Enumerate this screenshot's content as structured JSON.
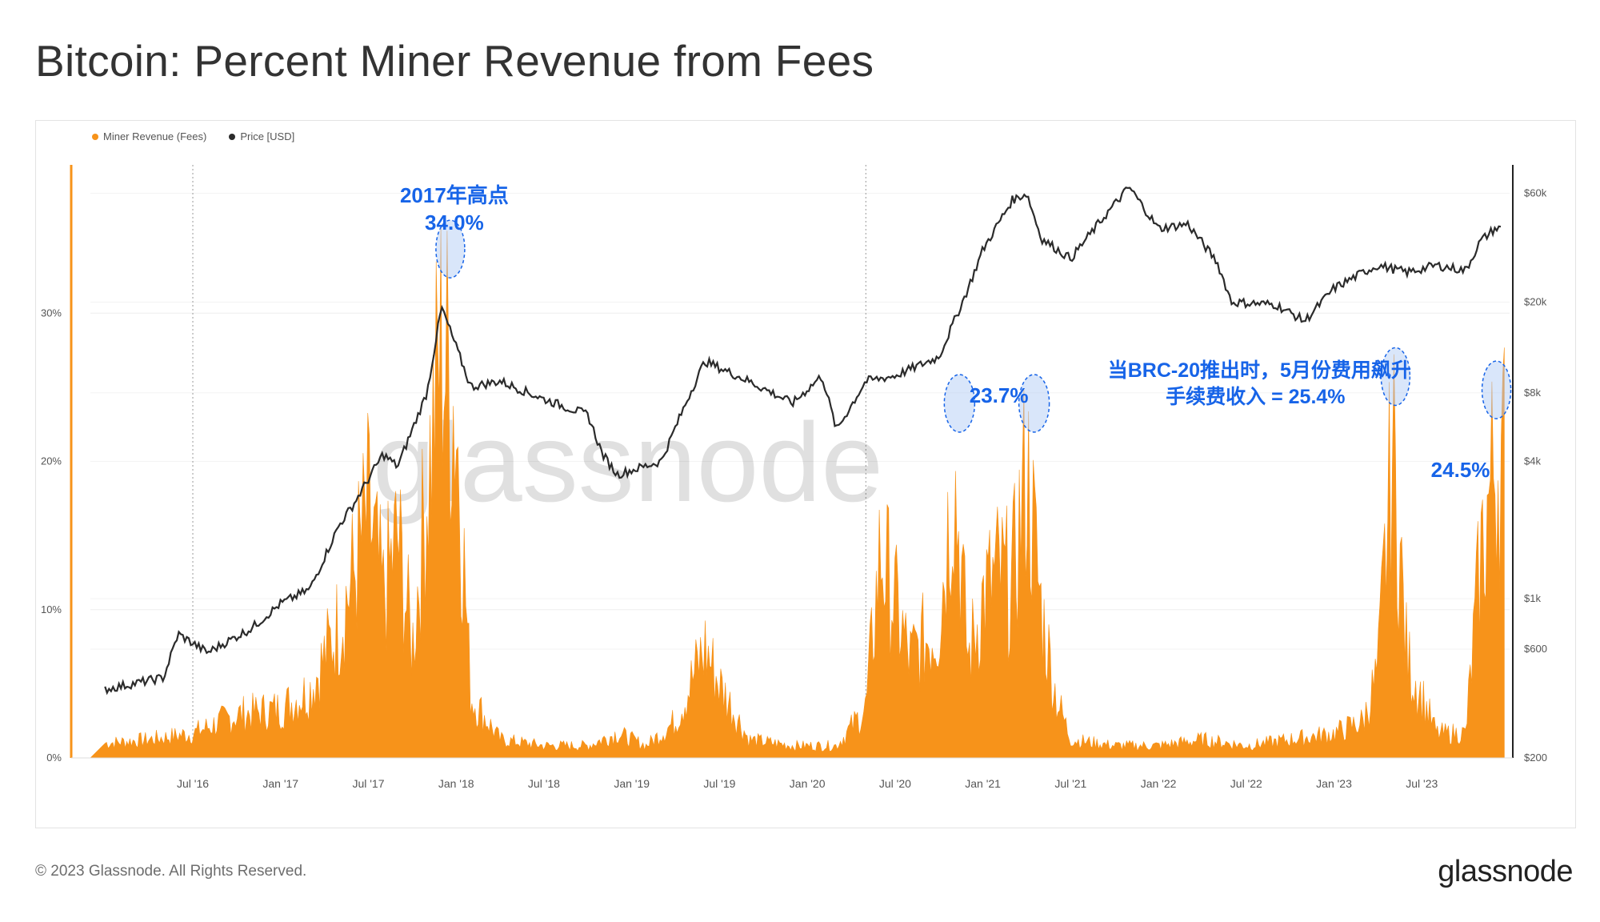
{
  "header": {
    "title": "Bitcoin: Percent Miner Revenue from Fees"
  },
  "footer": {
    "copyright": "© 2023 Glassnode. All Rights Reserved.",
    "brand": "glassnode"
  },
  "watermark": "glassnode",
  "colors": {
    "fees": "#f7931a",
    "price": "#2b2b2b",
    "annotation": "#1764e8"
  },
  "chart_data": {
    "type": "area",
    "title": "Bitcoin: Percent Miner Revenue from Fees",
    "legend": [
      "Miner Revenue (Fees)",
      "Price [USD]"
    ],
    "legend_position": "top-left",
    "x_ticks": [
      "Jul '16",
      "Jan '17",
      "Jul '17",
      "Jan '18",
      "Jul '18",
      "Jan '19",
      "Jul '19",
      "Jan '20",
      "Jul '20",
      "Jan '21",
      "Jul '21",
      "Jan '22",
      "Jul '22",
      "Jan '23",
      "Jul '23"
    ],
    "y_left_ticks": [
      "0%",
      "10%",
      "20%",
      "30%"
    ],
    "y_left_range": [
      0,
      40
    ],
    "y_right_ticks": [
      "$200",
      "$600",
      "$1k",
      "$4k",
      "$8k",
      "$20k",
      "$60k"
    ],
    "y_right_scale": "log",
    "y_right_range": [
      200,
      80000
    ],
    "series": [
      {
        "name": "Miner Revenue (Fees)",
        "unit": "%",
        "axis": "left",
        "type": "area",
        "x": [
          "2016-01",
          "2016-04",
          "2016-07",
          "2016-10",
          "2017-01",
          "2017-03",
          "2017-05",
          "2017-06",
          "2017-07",
          "2017-08",
          "2017-09",
          "2017-10",
          "2017-11",
          "2017-12",
          "2018-01",
          "2018-02",
          "2018-04",
          "2018-07",
          "2018-10",
          "2018-12",
          "2019-02",
          "2019-04",
          "2019-05",
          "2019-06",
          "2019-07",
          "2019-09",
          "2019-12",
          "2020-03",
          "2020-05",
          "2020-06",
          "2020-08",
          "2020-10",
          "2020-11",
          "2020-12",
          "2021-01",
          "2021-02",
          "2021-03",
          "2021-04",
          "2021-05",
          "2021-06",
          "2021-07",
          "2021-10",
          "2022-01",
          "2022-04",
          "2022-07",
          "2022-10",
          "2023-01",
          "2023-03",
          "2023-04",
          "2023-05",
          "2023-06",
          "2023-08",
          "2023-10",
          "2023-11",
          "2023-12"
        ],
        "values": [
          1.2,
          1.5,
          2,
          3.5,
          4,
          5.5,
          11,
          15,
          20,
          13,
          18,
          9,
          22,
          34,
          28,
          5,
          1.5,
          1,
          1,
          2,
          1,
          3,
          6,
          9,
          6,
          1.5,
          1,
          1,
          4,
          17,
          8,
          11,
          23.7,
          8,
          13,
          15,
          14,
          23.7,
          12,
          5,
          1.5,
          1,
          1,
          1.5,
          1,
          1.5,
          2,
          3,
          7,
          25.4,
          8,
          2,
          2,
          16,
          24.5
        ]
      },
      {
        "name": "Price [USD]",
        "unit": "USD",
        "axis": "right",
        "type": "line",
        "x": [
          "2016-01",
          "2016-05",
          "2016-06",
          "2016-08",
          "2016-11",
          "2017-01",
          "2017-03",
          "2017-05",
          "2017-06",
          "2017-08",
          "2017-09",
          "2017-11",
          "2017-12",
          "2018-02",
          "2018-04",
          "2018-07",
          "2018-10",
          "2018-11",
          "2018-12",
          "2019-03",
          "2019-05",
          "2019-06",
          "2019-09",
          "2019-12",
          "2020-02",
          "2020-03",
          "2020-05",
          "2020-07",
          "2020-10",
          "2020-12",
          "2021-01",
          "2021-03",
          "2021-04",
          "2021-05",
          "2021-07",
          "2021-09",
          "2021-11",
          "2022-01",
          "2022-03",
          "2022-05",
          "2022-06",
          "2022-09",
          "2022-11",
          "2023-01",
          "2023-03",
          "2023-04",
          "2023-06",
          "2023-08",
          "2023-10",
          "2023-11",
          "2023-12"
        ],
        "values": [
          400,
          450,
          700,
          580,
          740,
          950,
          1100,
          2100,
          2600,
          4300,
          3800,
          8000,
          19000,
          8500,
          9000,
          7500,
          6400,
          4300,
          3500,
          4000,
          8000,
          11000,
          9000,
          7200,
          9500,
          5500,
          9000,
          9500,
          11500,
          23000,
          34000,
          56000,
          60000,
          38000,
          31000,
          45000,
          64000,
          42000,
          44000,
          30000,
          20000,
          19500,
          16500,
          23000,
          27000,
          29000,
          27000,
          29000,
          27500,
          37000,
          42000
        ]
      }
    ],
    "annotations": [
      {
        "text": "2017年高点",
        "value": "34.0%"
      },
      {
        "text": "",
        "value": "23.7%"
      },
      {
        "text": "当BRC-20推出时，5月份费用飙升",
        "value": "手续费收入 = 25.4%"
      },
      {
        "text": "",
        "value": "24.5%"
      }
    ]
  }
}
